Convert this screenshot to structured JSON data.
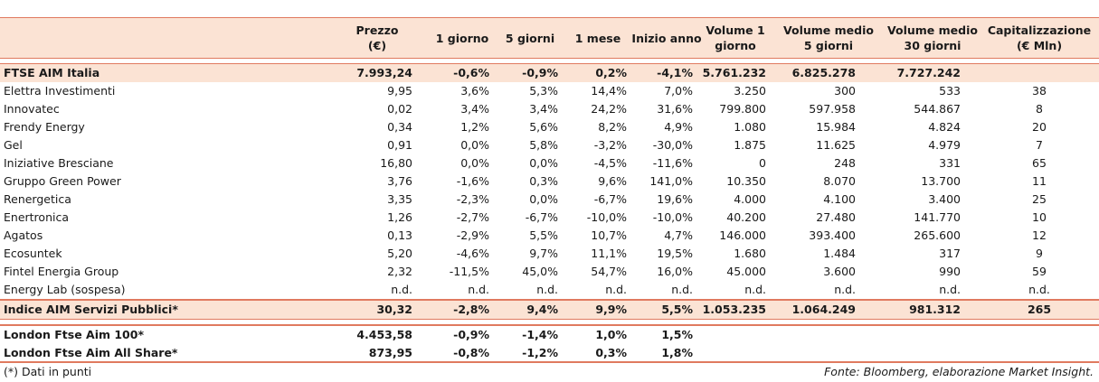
{
  "columns": [
    "",
    "Prezzo\n(€)",
    "1 giorno",
    "5 giorni",
    "1 mese",
    "Inizio anno",
    "Volume 1\ngiorno",
    "Volume medio\n5 giorni",
    "Volume medio\n30 giorni",
    "Capitalizzazione\n(€ Mln)"
  ],
  "index_row": [
    "FTSE AIM Italia",
    "7.993,24",
    "-0,6%",
    "-0,9%",
    "0,2%",
    "-4,1%",
    "5.761.232",
    "6.825.278",
    "7.727.242",
    ""
  ],
  "rows": [
    [
      "Elettra Investimenti",
      "9,95",
      "3,6%",
      "5,3%",
      "14,4%",
      "7,0%",
      "3.250",
      "300",
      "533",
      "38"
    ],
    [
      "Innovatec",
      "0,02",
      "3,4%",
      "3,4%",
      "24,2%",
      "31,6%",
      "799.800",
      "597.958",
      "544.867",
      "8"
    ],
    [
      "Frendy Energy",
      "0,34",
      "1,2%",
      "5,6%",
      "8,2%",
      "4,9%",
      "1.080",
      "15.984",
      "4.824",
      "20"
    ],
    [
      "Gel",
      "0,91",
      "0,0%",
      "5,8%",
      "-3,2%",
      "-30,0%",
      "1.875",
      "11.625",
      "4.979",
      "7"
    ],
    [
      "Iniziative Bresciane",
      "16,80",
      "0,0%",
      "0,0%",
      "-4,5%",
      "-11,6%",
      "0",
      "248",
      "331",
      "65"
    ],
    [
      "Gruppo Green Power",
      "3,76",
      "-1,6%",
      "0,3%",
      "9,6%",
      "141,0%",
      "10.350",
      "8.070",
      "13.700",
      "11"
    ],
    [
      "Renergetica",
      "3,35",
      "-2,3%",
      "0,0%",
      "-6,7%",
      "19,6%",
      "4.000",
      "4.100",
      "3.400",
      "25"
    ],
    [
      "Enertronica",
      "1,26",
      "-2,7%",
      "-6,7%",
      "-10,0%",
      "-10,0%",
      "40.200",
      "27.480",
      "141.770",
      "10"
    ],
    [
      "Agatos",
      "0,13",
      "-2,9%",
      "5,5%",
      "10,7%",
      "4,7%",
      "146.000",
      "393.400",
      "265.600",
      "12"
    ],
    [
      "Ecosuntek",
      "5,20",
      "-4,6%",
      "9,7%",
      "11,1%",
      "19,5%",
      "1.680",
      "1.484",
      "317",
      "9"
    ],
    [
      "Fintel Energia Group",
      "2,32",
      "-11,5%",
      "45,0%",
      "54,7%",
      "16,0%",
      "45.000",
      "3.600",
      "990",
      "59"
    ],
    [
      "Energy Lab (sospesa)",
      "n.d.",
      "n.d.",
      "n.d.",
      "n.d.",
      "n.d.",
      "n.d.",
      "n.d.",
      "n.d.",
      "n.d."
    ]
  ],
  "aim_services_row": [
    "Indice AIM Servizi Pubblici*",
    "30,32",
    "-2,8%",
    "9,4%",
    "9,9%",
    "5,5%",
    "1.053.235",
    "1.064.249",
    "981.312",
    "265"
  ],
  "london_rows": [
    [
      "London Ftse Aim 100*",
      "4.453,58",
      "-0,9%",
      "-1,4%",
      "1,0%",
      "1,5%"
    ],
    [
      "London Ftse Aim All Share*",
      "873,95",
      "-0,8%",
      "-1,2%",
      "0,3%",
      "1,8%"
    ]
  ],
  "footnote": "(*) Dati in punti",
  "source": "Fonte: Bloomberg, elaborazione Market Insight.",
  "colors": {
    "header_bg": "#fbe3d4",
    "rule": "#e07a5f",
    "text": "#1a1a1a"
  }
}
